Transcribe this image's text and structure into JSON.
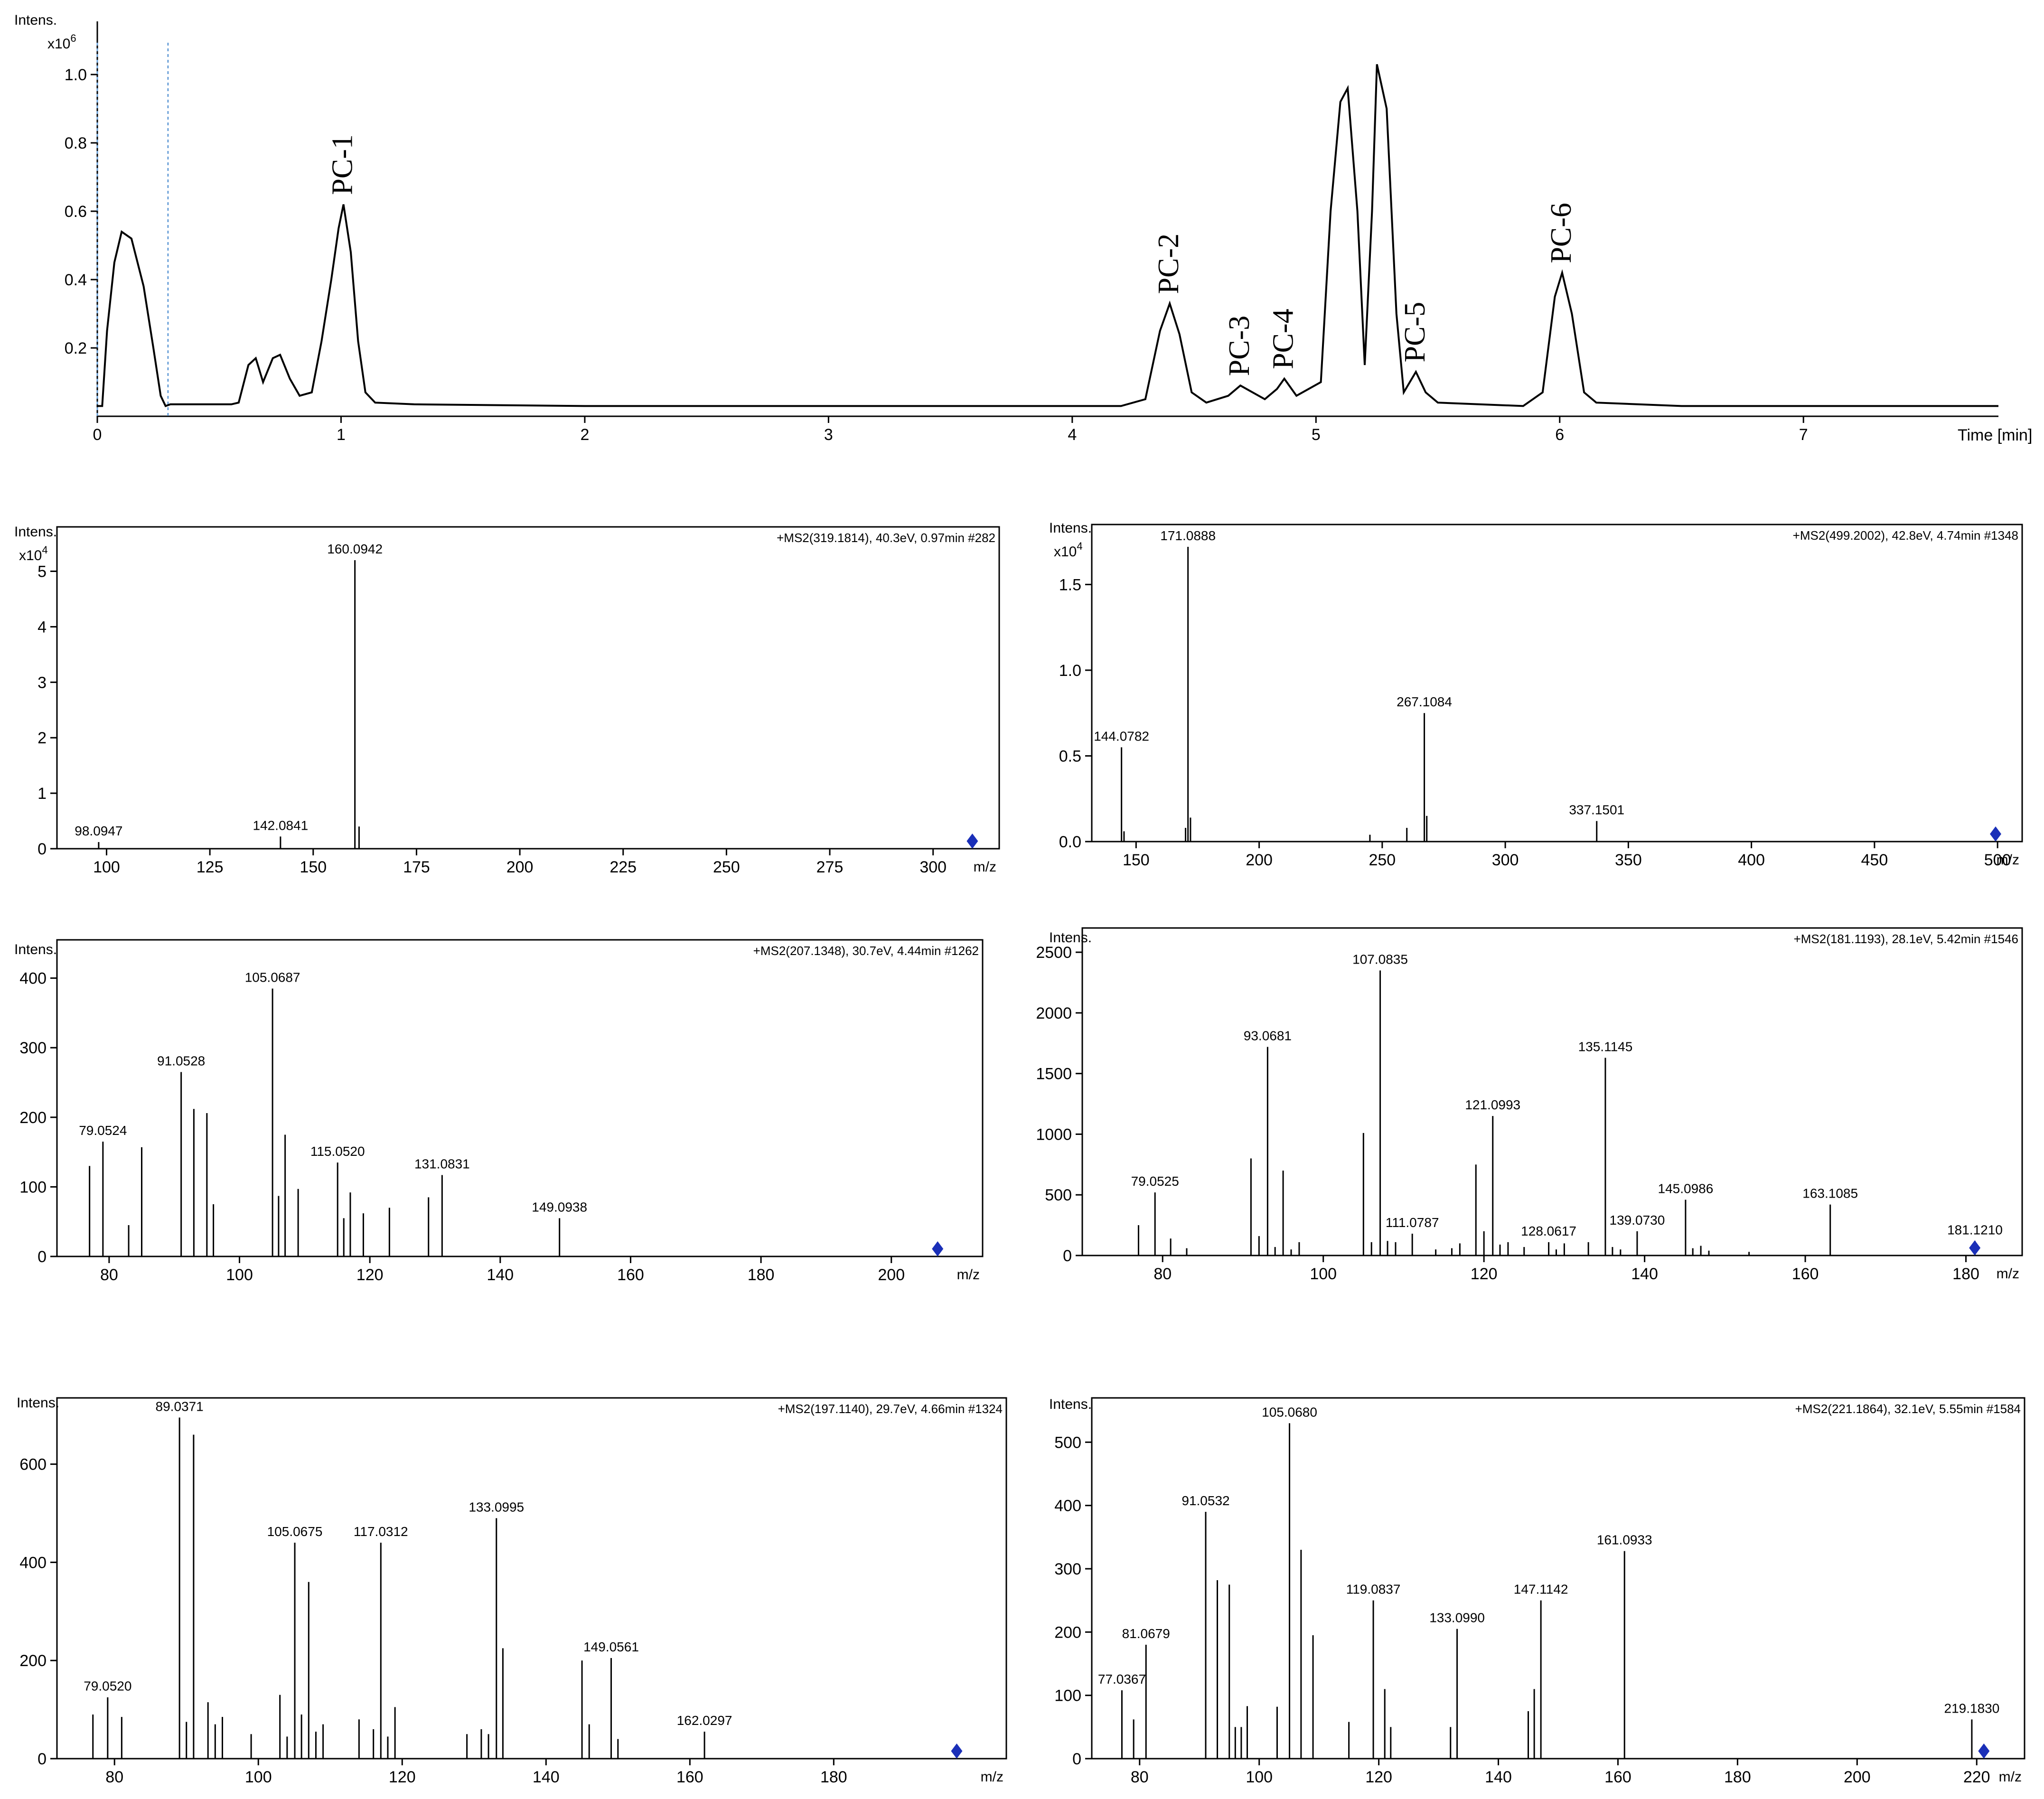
{
  "chart_data": [
    {
      "type": "line",
      "id": "chromatogram",
      "ylabel": "Intens.",
      "yscale_label": "x10",
      "yscale_exp": "6",
      "xlabel": "Time [min]",
      "xlim": [
        0,
        7.8
      ],
      "ylim": [
        0,
        1.1
      ],
      "xticks": [
        0,
        1,
        2,
        3,
        4,
        5,
        6,
        7
      ],
      "yticks": [
        0.2,
        0.4,
        0.6,
        0.8,
        1.0
      ],
      "ytick_labels": [
        "0.2",
        "0.4",
        "0.6",
        "0.8",
        "1.0"
      ],
      "guides_x": [
        0.0,
        0.29
      ],
      "points": [
        [
          0,
          0.03
        ],
        [
          0.02,
          0.03
        ],
        [
          0.04,
          0.25
        ],
        [
          0.07,
          0.45
        ],
        [
          0.1,
          0.54
        ],
        [
          0.14,
          0.52
        ],
        [
          0.19,
          0.38
        ],
        [
          0.23,
          0.2
        ],
        [
          0.26,
          0.06
        ],
        [
          0.28,
          0.03
        ],
        [
          0.3,
          0.035
        ],
        [
          0.55,
          0.035
        ],
        [
          0.58,
          0.04
        ],
        [
          0.62,
          0.15
        ],
        [
          0.65,
          0.17
        ],
        [
          0.68,
          0.1
        ],
        [
          0.72,
          0.17
        ],
        [
          0.75,
          0.18
        ],
        [
          0.79,
          0.11
        ],
        [
          0.83,
          0.06
        ],
        [
          0.88,
          0.07
        ],
        [
          0.92,
          0.22
        ],
        [
          0.96,
          0.4
        ],
        [
          0.99,
          0.55
        ],
        [
          1.01,
          0.62
        ],
        [
          1.04,
          0.48
        ],
        [
          1.07,
          0.22
        ],
        [
          1.1,
          0.07
        ],
        [
          1.14,
          0.04
        ],
        [
          1.3,
          0.035
        ],
        [
          2.0,
          0.03
        ],
        [
          3.0,
          0.03
        ],
        [
          4.2,
          0.03
        ],
        [
          4.3,
          0.05
        ],
        [
          4.36,
          0.25
        ],
        [
          4.4,
          0.33
        ],
        [
          4.44,
          0.24
        ],
        [
          4.49,
          0.07
        ],
        [
          4.55,
          0.04
        ],
        [
          4.64,
          0.06
        ],
        [
          4.69,
          0.09
        ],
        [
          4.74,
          0.07
        ],
        [
          4.79,
          0.05
        ],
        [
          4.84,
          0.08
        ],
        [
          4.87,
          0.11
        ],
        [
          4.92,
          0.06
        ],
        [
          5.02,
          0.1
        ],
        [
          5.06,
          0.6
        ],
        [
          5.1,
          0.92
        ],
        [
          5.13,
          0.96
        ],
        [
          5.17,
          0.6
        ],
        [
          5.2,
          0.15
        ],
        [
          5.23,
          0.6
        ],
        [
          5.25,
          1.03
        ],
        [
          5.29,
          0.9
        ],
        [
          5.33,
          0.3
        ],
        [
          5.36,
          0.07
        ],
        [
          5.41,
          0.13
        ],
        [
          5.45,
          0.07
        ],
        [
          5.5,
          0.04
        ],
        [
          5.85,
          0.03
        ],
        [
          5.93,
          0.07
        ],
        [
          5.98,
          0.35
        ],
        [
          6.01,
          0.42
        ],
        [
          6.05,
          0.3
        ],
        [
          6.1,
          0.07
        ],
        [
          6.15,
          0.04
        ],
        [
          6.5,
          0.03
        ],
        [
          7.8,
          0.03
        ]
      ],
      "annotations": [
        {
          "label": "PC-1",
          "x": 1.01,
          "y": 0.62
        },
        {
          "label": "PC-2",
          "x": 4.4,
          "y": 0.33
        },
        {
          "label": "PC-3",
          "x": 4.69,
          "y": 0.09
        },
        {
          "label": "PC-4",
          "x": 4.87,
          "y": 0.11
        },
        {
          "label": "PC-5",
          "x": 5.41,
          "y": 0.13
        },
        {
          "label": "PC-6",
          "x": 6.01,
          "y": 0.42
        }
      ]
    },
    {
      "type": "bar",
      "id": "ms1",
      "header": "+MS2(319.1814), 40.3eV, 0.97min #282",
      "ylabel": "Intens.",
      "yscale_label": "x10",
      "yscale_exp": "4",
      "xlabel": "m/z",
      "xlim": [
        88,
        316
      ],
      "ylim": [
        0,
        5.8
      ],
      "xticks": [
        100,
        125,
        150,
        175,
        200,
        225,
        250,
        275,
        300
      ],
      "yticks": [
        0,
        1,
        2,
        3,
        4,
        5
      ],
      "ytick_labels": [
        "0",
        "1",
        "2",
        "3",
        "4",
        "5"
      ],
      "marker_x": 309.5,
      "peaks": [
        [
          98.0947,
          0.12,
          "98.0947"
        ],
        [
          142.0841,
          0.22,
          "142.0841"
        ],
        [
          160.0942,
          5.2,
          "160.0942"
        ],
        [
          161.1,
          0.4,
          ""
        ]
      ]
    },
    {
      "type": "bar",
      "id": "ms2",
      "header": "+MS2(499.2002), 42.8eV, 4.74min #1348",
      "ylabel": "Intens.",
      "yscale_label": "x10",
      "yscale_exp": "4",
      "xlabel": "m/z",
      "xlim": [
        132,
        510
      ],
      "ylim": [
        0,
        1.85
      ],
      "xticks": [
        150,
        200,
        250,
        300,
        350,
        400,
        450,
        500
      ],
      "yticks": [
        0.0,
        0.5,
        1.0,
        1.5
      ],
      "ytick_labels": [
        "0.0",
        "0.5",
        "1.0",
        "1.5"
      ],
      "marker_x": 499.2,
      "peaks": [
        [
          144.0782,
          0.55,
          "144.0782"
        ],
        [
          145.1,
          0.06,
          ""
        ],
        [
          170.1,
          0.08,
          ""
        ],
        [
          171.0888,
          1.72,
          "171.0888"
        ],
        [
          172.1,
          0.14,
          ""
        ],
        [
          245,
          0.04,
          ""
        ],
        [
          260,
          0.08,
          ""
        ],
        [
          267.1084,
          0.75,
          "267.1084"
        ],
        [
          268.1,
          0.15,
          ""
        ],
        [
          337.1501,
          0.12,
          "337.1501"
        ]
      ]
    },
    {
      "type": "bar",
      "id": "ms3",
      "header": "+MS2(207.1348), 30.7eV, 4.44min #1262",
      "ylabel": "Intens.",
      "xlabel": "m/z",
      "xlim": [
        72,
        214
      ],
      "ylim": [
        0,
        455
      ],
      "xticks": [
        80,
        100,
        120,
        140,
        160,
        180,
        200
      ],
      "yticks": [
        0,
        100,
        200,
        300,
        400
      ],
      "ytick_labels": [
        "0",
        "100",
        "200",
        "300",
        "400"
      ],
      "marker_x": 207.1,
      "peaks": [
        [
          77,
          130,
          ""
        ],
        [
          79.0524,
          165,
          "79.0524"
        ],
        [
          83,
          45,
          ""
        ],
        [
          85,
          157,
          ""
        ],
        [
          91.0528,
          265,
          "91.0528"
        ],
        [
          93,
          212,
          ""
        ],
        [
          95,
          206,
          ""
        ],
        [
          96,
          75,
          ""
        ],
        [
          105.0687,
          385,
          "105.0687"
        ],
        [
          106,
          87,
          ""
        ],
        [
          107,
          175,
          ""
        ],
        [
          109,
          97,
          ""
        ],
        [
          115.052,
          135,
          "115.0520"
        ],
        [
          116,
          55,
          ""
        ],
        [
          117,
          92,
          ""
        ],
        [
          119,
          62,
          ""
        ],
        [
          123,
          70,
          ""
        ],
        [
          129,
          85,
          ""
        ],
        [
          131.0831,
          117,
          "131.0831"
        ],
        [
          149.0938,
          55,
          "149.0938"
        ]
      ]
    },
    {
      "type": "bar",
      "id": "ms4",
      "header": "+MS2(181.1193), 28.1eV, 5.42min #1546",
      "ylabel": "Intens.",
      "xlabel": "m/z",
      "xlim": [
        70,
        187
      ],
      "ylim": [
        0,
        2700
      ],
      "xticks": [
        80,
        100,
        120,
        140,
        160,
        180
      ],
      "yticks": [
        0,
        500,
        1000,
        1500,
        2000,
        2500
      ],
      "ytick_labels": [
        "0",
        "500",
        "1000",
        "1500",
        "2000",
        "2500"
      ],
      "marker_x": 181.1,
      "peaks": [
        [
          77,
          250,
          ""
        ],
        [
          79.0525,
          520,
          "79.0525"
        ],
        [
          81,
          140,
          ""
        ],
        [
          83,
          60,
          ""
        ],
        [
          91,
          800,
          ""
        ],
        [
          92,
          160,
          ""
        ],
        [
          93.0681,
          1720,
          "93.0681"
        ],
        [
          94,
          70,
          ""
        ],
        [
          95,
          700,
          ""
        ],
        [
          96,
          50,
          ""
        ],
        [
          97,
          110,
          ""
        ],
        [
          105,
          1010,
          ""
        ],
        [
          106,
          110,
          ""
        ],
        [
          107.0835,
          2350,
          "107.0835"
        ],
        [
          108,
          120,
          ""
        ],
        [
          109,
          110,
          ""
        ],
        [
          111.0787,
          180,
          "111.0787"
        ],
        [
          114,
          50,
          ""
        ],
        [
          116,
          60,
          ""
        ],
        [
          117,
          100,
          ""
        ],
        [
          119,
          750,
          ""
        ],
        [
          120,
          200,
          ""
        ],
        [
          121.0993,
          1150,
          "121.0993"
        ],
        [
          122,
          90,
          ""
        ],
        [
          123,
          110,
          ""
        ],
        [
          125,
          70,
          ""
        ],
        [
          128.0617,
          110,
          "128.0617"
        ],
        [
          129,
          50,
          ""
        ],
        [
          130,
          100,
          ""
        ],
        [
          133,
          110,
          ""
        ],
        [
          135.1145,
          1630,
          "135.1145"
        ],
        [
          136,
          70,
          ""
        ],
        [
          137,
          50,
          ""
        ],
        [
          139.073,
          200,
          "139.0730"
        ],
        [
          145.0986,
          460,
          "145.0986"
        ],
        [
          146,
          60,
          ""
        ],
        [
          147,
          80,
          ""
        ],
        [
          148,
          40,
          ""
        ],
        [
          153,
          30,
          ""
        ],
        [
          163.1085,
          420,
          "163.1085"
        ],
        [
          181.121,
          120,
          "181.1210"
        ]
      ]
    },
    {
      "type": "bar",
      "id": "ms5",
      "header": "+MS2(197.1140), 29.7eV, 4.66min #1324",
      "ylabel": "Intens.",
      "xlabel": "m/z",
      "xlim": [
        72,
        204
      ],
      "ylim": [
        0,
        735
      ],
      "xticks": [
        80,
        100,
        120,
        140,
        160,
        180
      ],
      "yticks": [
        0,
        200,
        400,
        600
      ],
      "ytick_labels": [
        "0",
        "200",
        "400",
        "600"
      ],
      "marker_x": 197.1,
      "peaks": [
        [
          77,
          90,
          ""
        ],
        [
          79.052,
          125,
          "79.0520"
        ],
        [
          81,
          85,
          ""
        ],
        [
          89.0371,
          695,
          "89.0371"
        ],
        [
          90,
          75,
          ""
        ],
        [
          91,
          660,
          ""
        ],
        [
          93,
          115,
          ""
        ],
        [
          94,
          70,
          ""
        ],
        [
          95,
          85,
          ""
        ],
        [
          99,
          50,
          ""
        ],
        [
          103,
          130,
          ""
        ],
        [
          104,
          45,
          ""
        ],
        [
          105.0675,
          440,
          "105.0675"
        ],
        [
          106,
          90,
          ""
        ],
        [
          107,
          360,
          ""
        ],
        [
          108,
          55,
          ""
        ],
        [
          109,
          70,
          ""
        ],
        [
          114,
          80,
          ""
        ],
        [
          116,
          60,
          ""
        ],
        [
          117.0312,
          440,
          "117.0312"
        ],
        [
          118,
          45,
          ""
        ],
        [
          119,
          105,
          ""
        ],
        [
          129,
          50,
          ""
        ],
        [
          131,
          60,
          ""
        ],
        [
          132,
          50,
          ""
        ],
        [
          133.0995,
          490,
          "133.0995"
        ],
        [
          134,
          225,
          ""
        ],
        [
          145,
          200,
          ""
        ],
        [
          146,
          70,
          ""
        ],
        [
          149.0561,
          205,
          "149.0561"
        ],
        [
          150,
          40,
          ""
        ],
        [
          162.0297,
          55,
          "162.0297"
        ]
      ]
    },
    {
      "type": "bar",
      "id": "ms6",
      "header": "+MS2(221.1864), 32.1eV, 5.55min #1584",
      "ylabel": "Intens.",
      "xlabel": "m/z",
      "xlim": [
        72,
        228
      ],
      "ylim": [
        0,
        570
      ],
      "xticks": [
        80,
        100,
        120,
        140,
        160,
        180,
        200,
        220
      ],
      "yticks": [
        0,
        100,
        200,
        300,
        400,
        500
      ],
      "ytick_labels": [
        "0",
        "100",
        "200",
        "300",
        "400",
        "500"
      ],
      "marker_x": 221.2,
      "peaks": [
        [
          77.0367,
          108,
          "77.0367"
        ],
        [
          79,
          62,
          ""
        ],
        [
          81.0679,
          180,
          "81.0679"
        ],
        [
          91.0532,
          390,
          "91.0532"
        ],
        [
          93,
          282,
          ""
        ],
        [
          95,
          275,
          ""
        ],
        [
          96,
          50,
          ""
        ],
        [
          97,
          50,
          ""
        ],
        [
          98,
          83,
          ""
        ],
        [
          103,
          82,
          ""
        ],
        [
          105.068,
          530,
          "105.0680"
        ],
        [
          107,
          330,
          ""
        ],
        [
          109,
          195,
          ""
        ],
        [
          115,
          58,
          ""
        ],
        [
          119.0837,
          250,
          "119.0837"
        ],
        [
          121,
          110,
          ""
        ],
        [
          122,
          50,
          ""
        ],
        [
          132,
          50,
          ""
        ],
        [
          133.099,
          205,
          "133.0990"
        ],
        [
          145,
          75,
          ""
        ],
        [
          146,
          110,
          ""
        ],
        [
          147.1142,
          250,
          "147.1142"
        ],
        [
          161.0933,
          328,
          "161.0933"
        ],
        [
          219.183,
          62,
          "219.1830"
        ]
      ]
    }
  ]
}
